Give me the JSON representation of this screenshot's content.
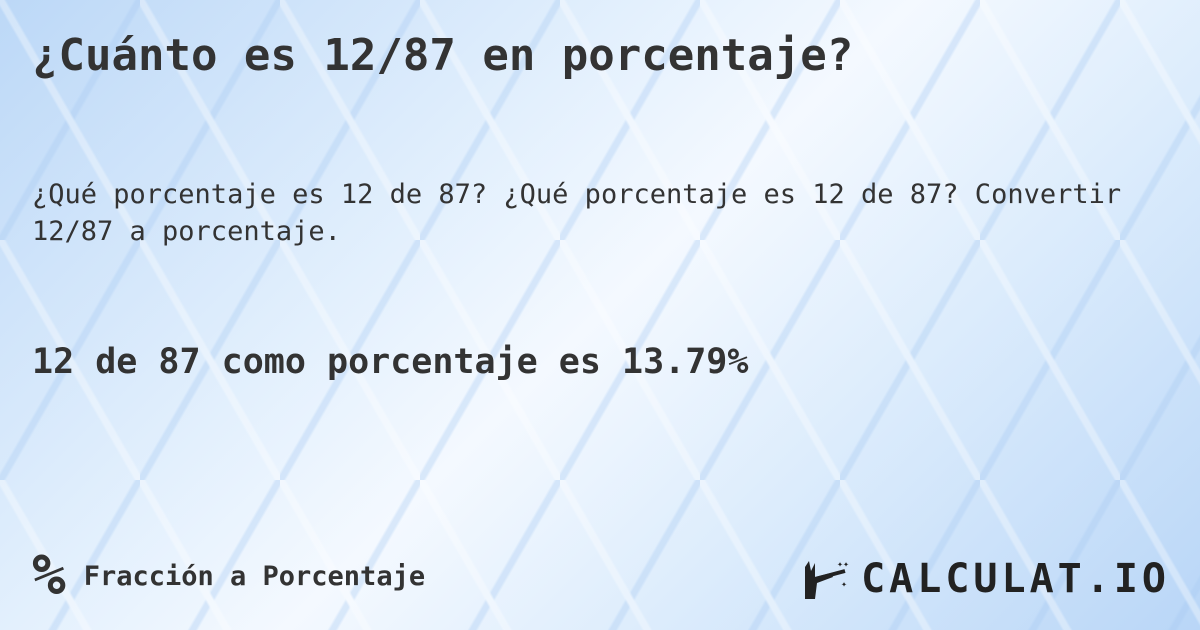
{
  "title": "¿Cuánto es 12/87 en porcentaje?",
  "subtitle": "¿Qué porcentaje es 12 de 87? ¿Qué porcentaje es 12 de 87? Convertir 12/87 a porcentaje.",
  "answer": "12 de 87 como porcentaje es 13.79%",
  "footer": {
    "icon": "percent-icon",
    "symbol": "%",
    "category": "Fracción a Porcentaje"
  },
  "logo": {
    "text": "CALCULAT.IO",
    "icon": "magic-hand-icon"
  }
}
